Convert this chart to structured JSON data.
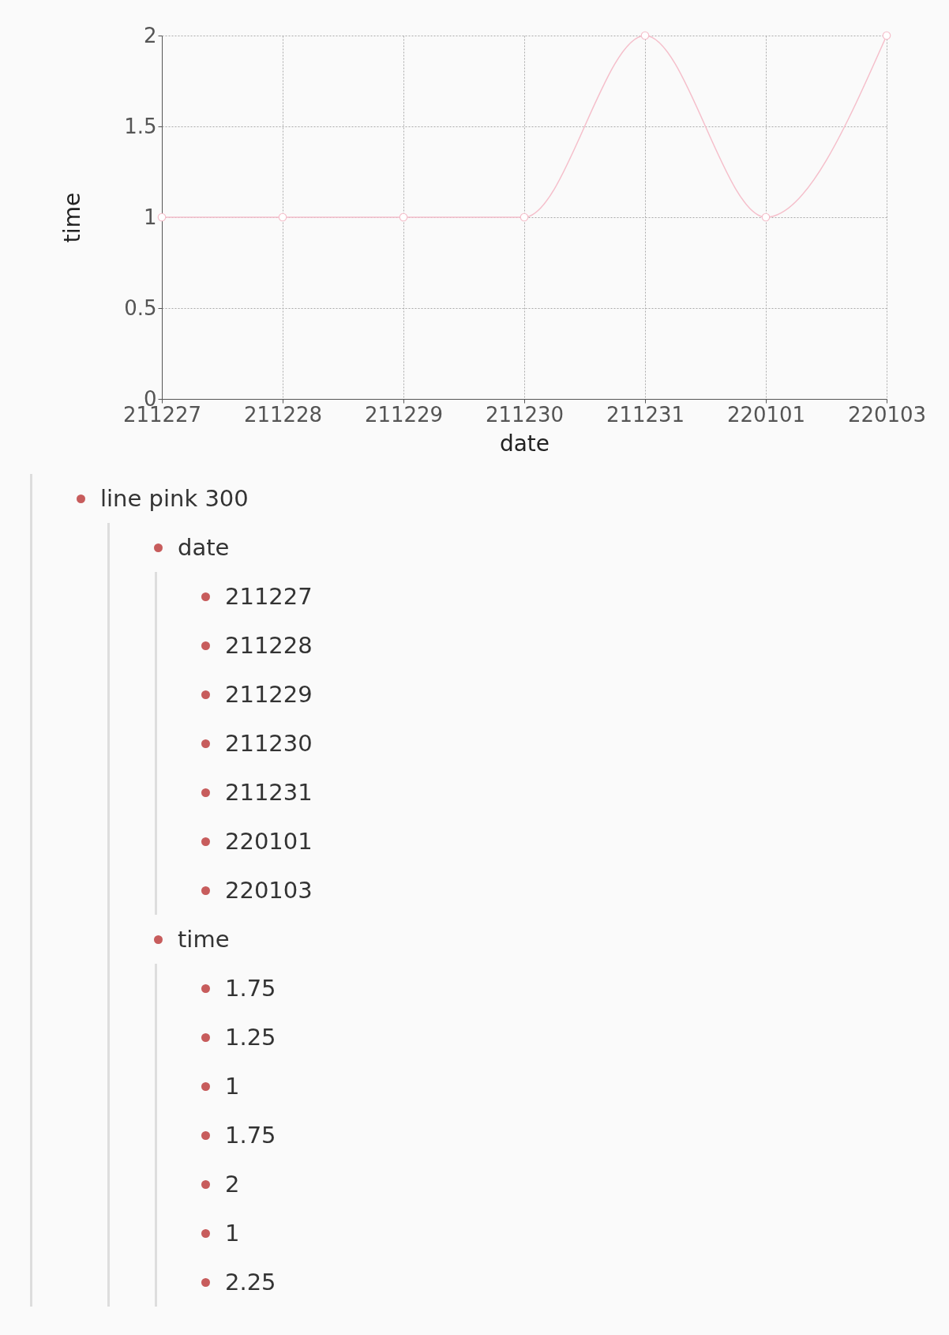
{
  "chart_data": {
    "type": "line",
    "xlabel": "date",
    "ylabel": "time",
    "categories": [
      "211227",
      "211228",
      "211229",
      "211230",
      "211231",
      "220101",
      "220103"
    ],
    "series": [
      {
        "color": "#f5bfcb",
        "values": [
          1,
          1,
          1,
          1,
          2,
          1,
          2
        ]
      }
    ],
    "ylim": [
      0,
      2
    ],
    "yticks": [
      0,
      0.5,
      1,
      1.5,
      2
    ],
    "grid": true,
    "marker": "circle",
    "legend": false,
    "annotations": [
      "line pink 300",
      "date",
      "211227",
      "211228",
      "211229",
      "211230",
      "211231",
      "220101",
      "220103",
      "time",
      "1.75",
      "1.25",
      "1",
      "1.75",
      "2",
      "1",
      "2.25"
    ]
  }
}
